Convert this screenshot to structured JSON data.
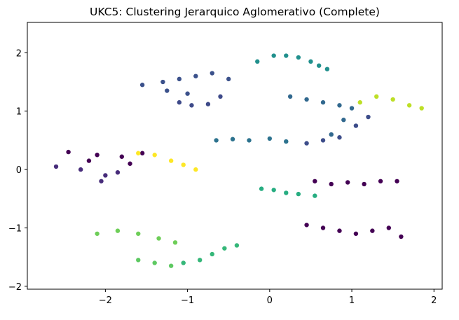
{
  "chart_data": {
    "type": "scatter",
    "title": "UKC5: Clustering Jerarquico Aglomerativo (Complete)",
    "xlabel": "",
    "ylabel": "",
    "xlim": [
      -2.95,
      2.1
    ],
    "ylim": [
      -2.05,
      2.52
    ],
    "xticks": [
      -2,
      -1,
      0,
      1,
      2
    ],
    "xtick_labels": [
      "−2",
      "−1",
      "0",
      "1",
      "2"
    ],
    "yticks": [
      -2,
      -1,
      0,
      1,
      2
    ],
    "ytick_labels": [
      "−2",
      "−1",
      "0",
      "1",
      "2"
    ],
    "grid": false,
    "legend": "none",
    "colormap": "viridis",
    "clusters": [
      {
        "color": "#440154",
        "x": [
          -2.45,
          -2.1,
          -1.8,
          -1.55,
          -1.7,
          -2.2
        ],
        "y": [
          0.3,
          0.25,
          0.22,
          0.28,
          0.1,
          0.15
        ]
      },
      {
        "color": "#472c7a",
        "x": [
          -2.6,
          -2.3,
          -2.0,
          -1.85,
          -2.05
        ],
        "y": [
          0.05,
          0.0,
          -0.1,
          -0.05,
          -0.2
        ]
      },
      {
        "color": "#3b518b",
        "x": [
          -1.55,
          -1.3,
          -1.1,
          -0.9,
          -0.7,
          -0.5,
          -1.0,
          -1.25
        ],
        "y": [
          1.45,
          1.5,
          1.55,
          1.6,
          1.65,
          1.55,
          1.3,
          1.35
        ]
      },
      {
        "color": "#3e4a89",
        "x": [
          -1.1,
          -0.95,
          -0.75,
          -0.6
        ],
        "y": [
          1.15,
          1.1,
          1.12,
          1.25
        ]
      },
      {
        "color": "#2c728e",
        "x": [
          -0.65,
          -0.45,
          -0.25,
          0.0,
          0.2
        ],
        "y": [
          0.5,
          0.52,
          0.5,
          0.53,
          0.48
        ]
      },
      {
        "color": "#21908d",
        "x": [
          -0.15,
          0.05,
          0.2,
          0.35,
          0.5,
          0.6,
          0.7
        ],
        "y": [
          1.85,
          1.95,
          1.95,
          1.92,
          1.85,
          1.78,
          1.72
        ]
      },
      {
        "color": "#27ad81",
        "x": [
          -0.1,
          0.05,
          0.2,
          0.35,
          0.55
        ],
        "y": [
          -0.33,
          -0.35,
          -0.4,
          -0.42,
          -0.45
        ]
      },
      {
        "color": "#31688e",
        "x": [
          0.25,
          0.45,
          0.65,
          0.85,
          1.0,
          0.9,
          0.75
        ],
        "y": [
          1.25,
          1.2,
          1.15,
          1.1,
          1.05,
          0.85,
          0.6
        ]
      },
      {
        "color": "#3d4d8a",
        "x": [
          0.45,
          0.65,
          0.85,
          1.05,
          1.2
        ],
        "y": [
          0.45,
          0.5,
          0.55,
          0.75,
          0.9
        ]
      },
      {
        "color": "#35b779",
        "x": [
          -1.05,
          -0.85,
          -0.7,
          -0.55,
          -0.4
        ],
        "y": [
          -1.6,
          -1.55,
          -1.45,
          -1.35,
          -1.3
        ]
      },
      {
        "color": "#6ece58",
        "x": [
          -2.1,
          -1.85,
          -1.6,
          -1.35,
          -1.15
        ],
        "y": [
          -1.1,
          -1.05,
          -1.1,
          -1.18,
          -1.25
        ]
      },
      {
        "color": "#5ec962",
        "x": [
          -1.6,
          -1.4,
          -1.2
        ],
        "y": [
          -1.55,
          -1.6,
          -1.65
        ]
      },
      {
        "color": "#fde725",
        "x": [
          -1.6,
          -1.4,
          -1.2,
          -1.05,
          -0.9
        ],
        "y": [
          0.28,
          0.25,
          0.15,
          0.08,
          0.0
        ]
      },
      {
        "color": "#bddf26",
        "x": [
          1.1,
          1.3,
          1.5,
          1.7,
          1.85
        ],
        "y": [
          1.15,
          1.25,
          1.2,
          1.1,
          1.05
        ]
      },
      {
        "color": "#440154",
        "x": [
          0.55,
          0.75,
          0.95,
          1.15,
          1.35,
          1.55
        ],
        "y": [
          -0.2,
          -0.25,
          -0.22,
          -0.25,
          -0.2,
          -0.2
        ]
      },
      {
        "color": "#440154",
        "x": [
          0.45,
          0.65,
          0.85,
          1.05,
          1.25,
          1.45,
          1.6
        ],
        "y": [
          -0.95,
          -1.0,
          -1.05,
          -1.1,
          -1.05,
          -1.0,
          -1.15
        ]
      }
    ]
  }
}
